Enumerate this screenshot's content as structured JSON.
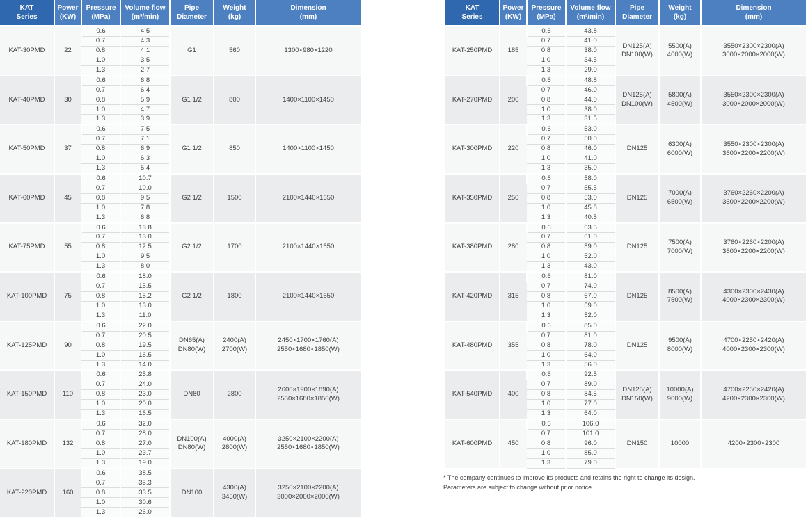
{
  "palette": {
    "header_first_col_bg": "#2f68af",
    "header_bg": "#4d80c1",
    "header_text": "#ffffff",
    "group_light_bg": "#f6f7f7",
    "group_dark_bg": "#ebeced",
    "subcell_bg": "#fafbfb",
    "divider": "#dcdddd",
    "body_text": "#3f4040"
  },
  "headers": [
    "KAT\nSeries",
    "Power\n(KW)",
    "Pressure\n(MPa)",
    "Volume flow\n(m³/min)",
    "Pipe\nDiameter",
    "Weight\n(kg)",
    "Dimension\n(mm)"
  ],
  "pressures": [
    "0.6",
    "0.7",
    "0.8",
    "1.0",
    "1.3"
  ],
  "tables": [
    {
      "side": "left",
      "groups": [
        {
          "series": "KAT-30PMD",
          "power": "22",
          "flows": [
            "4.5",
            "4.3",
            "4.1",
            "3.5",
            "2.7"
          ],
          "pipe": "G1",
          "weight": "560",
          "dimension": "1300×980×1220"
        },
        {
          "series": "KAT-40PMD",
          "power": "30",
          "flows": [
            "6.8",
            "6.4",
            "5.9",
            "4.7",
            "3.9"
          ],
          "pipe": "G1 1/2",
          "weight": "800",
          "dimension": "1400×1100×1450"
        },
        {
          "series": "KAT-50PMD",
          "power": "37",
          "flows": [
            "7.5",
            "7.1",
            "6.9",
            "6.3",
            "5.4"
          ],
          "pipe": "G1 1/2",
          "weight": "850",
          "dimension": "1400×1100×1450"
        },
        {
          "series": "KAT-60PMD",
          "power": "45",
          "flows": [
            "10.7",
            "10.0",
            "9.5",
            "7.8",
            "6.8"
          ],
          "pipe": "G2 1/2",
          "weight": "1500",
          "dimension": "2100×1440×1650"
        },
        {
          "series": "KAT-75PMD",
          "power": "55",
          "flows": [
            "13.8",
            "13.0",
            "12.5",
            "9.5",
            "8.0"
          ],
          "pipe": "G2 1/2",
          "weight": "1700",
          "dimension": "2100×1440×1650"
        },
        {
          "series": "KAT-100PMD",
          "power": "75",
          "flows": [
            "18.0",
            "15.5",
            "15.2",
            "13.0",
            "11.0"
          ],
          "pipe": "G2 1/2",
          "weight": "1800",
          "dimension": "2100×1440×1650"
        },
        {
          "series": "KAT-125PMD",
          "power": "90",
          "flows": [
            "22.0",
            "20.5",
            "19.5",
            "16.5",
            "14.0"
          ],
          "pipe": "DN65(A)\nDN80(W)",
          "weight": "2400(A)\n2700(W)",
          "dimension": "2450×1700×1760(A)\n2550×1680×1850(W)"
        },
        {
          "series": "KAT-150PMD",
          "power": "110",
          "flows": [
            "25.8",
            "24.0",
            "23.0",
            "20.0",
            "16.5"
          ],
          "pipe": "DN80",
          "weight": "2800",
          "dimension": "2600×1900×1890(A)\n2550×1680×1850(W)"
        },
        {
          "series": "KAT-180PMD",
          "power": "132",
          "flows": [
            "32.0",
            "28.0",
            "27.0",
            "23.7",
            "19.0"
          ],
          "pipe": "DN100(A)\nDN80(W)",
          "weight": "4000(A)\n2800(W)",
          "dimension": "3250×2100×2200(A)\n2550×1680×1850(W)"
        },
        {
          "series": "KAT-220PMD",
          "power": "160",
          "flows": [
            "38.5",
            "35.3",
            "33.5",
            "30.6",
            "26.0"
          ],
          "pipe": "DN100",
          "weight": "4300(A)\n3450(W)",
          "dimension": "3250×2100×2200(A)\n3000×2000×2000(W)"
        }
      ]
    },
    {
      "side": "right",
      "groups": [
        {
          "series": "KAT-250PMD",
          "power": "185",
          "flows": [
            "43.8",
            "41.0",
            "38.0",
            "34.5",
            "29.0"
          ],
          "pipe": "DN125(A)\nDN100(W)",
          "weight": "5500(A)\n4000(W)",
          "dimension": "3550×2300×2300(A)\n3000×2000×2000(W)"
        },
        {
          "series": "KAT-270PMD",
          "power": "200",
          "flows": [
            "48.8",
            "46.0",
            "44.0",
            "38.0",
            "31.5"
          ],
          "pipe": "DN125(A)\nDN100(W)",
          "weight": "5800(A)\n4500(W)",
          "dimension": "3550×2300×2300(A)\n3000×2000×2000(W)"
        },
        {
          "series": "KAT-300PMD",
          "power": "220",
          "flows": [
            "53.0",
            "50.0",
            "46.0",
            "41.0",
            "35.0"
          ],
          "pipe": "DN125",
          "weight": "6300(A)\n6000(W)",
          "dimension": "3550×2300×2300(A)\n3600×2200×2200(W)"
        },
        {
          "series": "KAT-350PMD",
          "power": "250",
          "flows": [
            "58.0",
            "55.5",
            "53.0",
            "45.8",
            "40.5"
          ],
          "pipe": "DN125",
          "weight": "7000(A)\n6500(W)",
          "dimension": "3760×2260×2200(A)\n3600×2200×2200(W)"
        },
        {
          "series": "KAT-380PMD",
          "power": "280",
          "flows": [
            "63.5",
            "61.0",
            "59.0",
            "52.0",
            "43.0"
          ],
          "pipe": "DN125",
          "weight": "7500(A)\n7000(W)",
          "dimension": "3760×2260×2200(A)\n3600×2200×2200(W)"
        },
        {
          "series": "KAT-420PMD",
          "power": "315",
          "flows": [
            "81.0",
            "74.0",
            "67.0",
            "59.0",
            "52.0"
          ],
          "pipe": "DN125",
          "weight": "8500(A)\n7500(W)",
          "dimension": "4300×2300×2430(A)\n4000×2300×2300(W)"
        },
        {
          "series": "KAT-480PMD",
          "power": "355",
          "flows": [
            "85.0",
            "81.0",
            "78.0",
            "64.0",
            "56.0"
          ],
          "pipe": "DN125",
          "weight": "9500(A)\n8000(W)",
          "dimension": "4700×2250×2420(A)\n4000×2300×2300(W)"
        },
        {
          "series": "KAT-540PMD",
          "power": "400",
          "flows": [
            "92.5",
            "89.0",
            "84.5",
            "77.0",
            "64.0"
          ],
          "pipe": "DN125(A)\nDN150(W)",
          "weight": "10000(A)\n9000(W)",
          "dimension": "4700×2250×2420(A)\n4200×2300×2300(W)"
        },
        {
          "series": "KAT-600PMD",
          "power": "450",
          "flows": [
            "106.0",
            "101.0",
            "96.0",
            "85.0",
            "79.0"
          ],
          "pipe": "DN150",
          "weight": "10000",
          "dimension": "4200×2300×2300"
        }
      ]
    }
  ],
  "footnote": {
    "line1": "* The company continues to improve its products and retains the right to change its design.",
    "line2": "Parameters are subject to change without prior notice."
  }
}
